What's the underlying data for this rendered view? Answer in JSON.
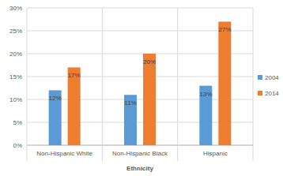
{
  "chart_data": {
    "type": "bar",
    "x_label": "Ethnicity",
    "categories": [
      "Non-Hispanic White",
      "Non-Hispanic Black",
      "Hispanic"
    ],
    "series": [
      {
        "name": "2004",
        "color": "#5b9bd5",
        "values": [
          12,
          11,
          13
        ],
        "value_labels": [
          "12%",
          "11%",
          "13%"
        ]
      },
      {
        "name": "2014",
        "color": "#ed7d31",
        "values": [
          17,
          20,
          27
        ],
        "value_labels": [
          "17%",
          "20%",
          "27%"
        ]
      }
    ],
    "ylim": [
      0,
      30
    ],
    "yticks": [
      {
        "value": 0,
        "label": "0%"
      },
      {
        "value": 5,
        "label": "5%"
      },
      {
        "value": 10,
        "label": "10%"
      },
      {
        "value": 15,
        "label": "15%"
      },
      {
        "value": 20,
        "label": "20%"
      },
      {
        "value": 25,
        "label": "25%"
      },
      {
        "value": 30,
        "label": "30%"
      }
    ],
    "grid": true,
    "data_labels": true,
    "legend": "right"
  }
}
